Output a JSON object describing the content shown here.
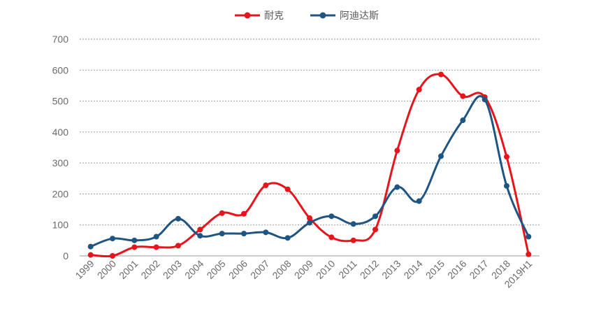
{
  "chart_data": {
    "type": "line",
    "title": "",
    "xlabel": "",
    "ylabel": "",
    "categories": [
      "1999",
      "2000",
      "2001",
      "2002",
      "2003",
      "2004",
      "2005",
      "2006",
      "2007",
      "2008",
      "2009",
      "2010",
      "2011",
      "2012",
      "2013",
      "2014",
      "2015",
      "2016",
      "2017",
      "2018",
      "2019H1"
    ],
    "ylim": [
      0,
      700
    ],
    "yticks": [
      0,
      100,
      200,
      300,
      400,
      500,
      600,
      700
    ],
    "grid": true,
    "legend_position": "top-center",
    "series": [
      {
        "name": "耐克",
        "color": "#e8141c",
        "values": [
          3,
          0,
          28,
          28,
          33,
          85,
          138,
          136,
          228,
          215,
          122,
          60,
          50,
          85,
          340,
          537,
          586,
          516,
          513,
          320,
          5
        ]
      },
      {
        "name": "阿迪达斯",
        "color": "#1f5582",
        "values": [
          30,
          56,
          50,
          62,
          120,
          65,
          72,
          72,
          76,
          58,
          107,
          128,
          103,
          128,
          222,
          177,
          322,
          438,
          505,
          226,
          62
        ]
      }
    ]
  }
}
